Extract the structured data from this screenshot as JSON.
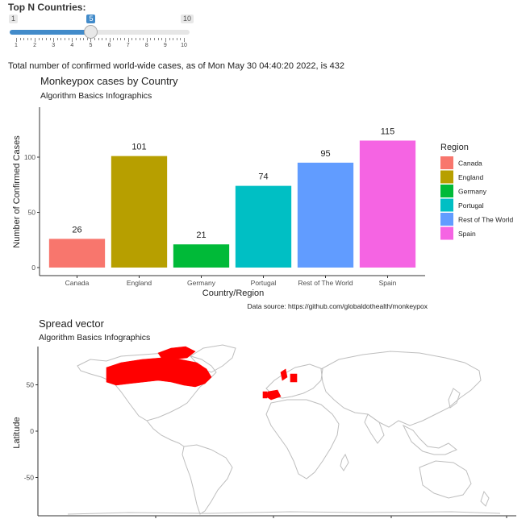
{
  "slider": {
    "label": "Top N Countries:",
    "min_label": "1",
    "max_label": "10",
    "value_label": "5",
    "value": 5,
    "min": 1,
    "max": 10,
    "tick_labels": [
      "1",
      "2",
      "3",
      "4",
      "5",
      "6",
      "7",
      "8",
      "9",
      "10"
    ]
  },
  "summary_text": "Total number of confirmed world-wide cases, as of Mon May 30 04:40:20 2022, is 432",
  "chart_data": [
    {
      "type": "bar",
      "title": "Monkeypox cases by Country",
      "subtitle": "Algorithm Basics Infographics",
      "xlabel": "Country/Region",
      "ylabel": "Number of Confirmed Cases",
      "categories": [
        "Canada",
        "England",
        "Germany",
        "Portugal",
        "Rest of The World",
        "Spain"
      ],
      "values": [
        26,
        101,
        21,
        74,
        95,
        115
      ],
      "colors": [
        "#F8766D",
        "#B79F00",
        "#00BA38",
        "#00BFC4",
        "#619CFF",
        "#F564E3"
      ],
      "yticks": [
        "0",
        "50",
        "100"
      ],
      "ylim": [
        0,
        128
      ],
      "legend_title": "Region",
      "legend_position": "right",
      "caption": "Data source: https://github.com/globaldothealth/monkeypox",
      "grid": false
    }
  ],
  "map": {
    "title": "Spread vector",
    "subtitle": "Algorithm Basics Infographics",
    "ylabel": "Latitude",
    "yticks": [
      "50",
      "0",
      "-50"
    ],
    "highlight_color": "#FF0000",
    "outline_color": "#BEBEBE"
  }
}
